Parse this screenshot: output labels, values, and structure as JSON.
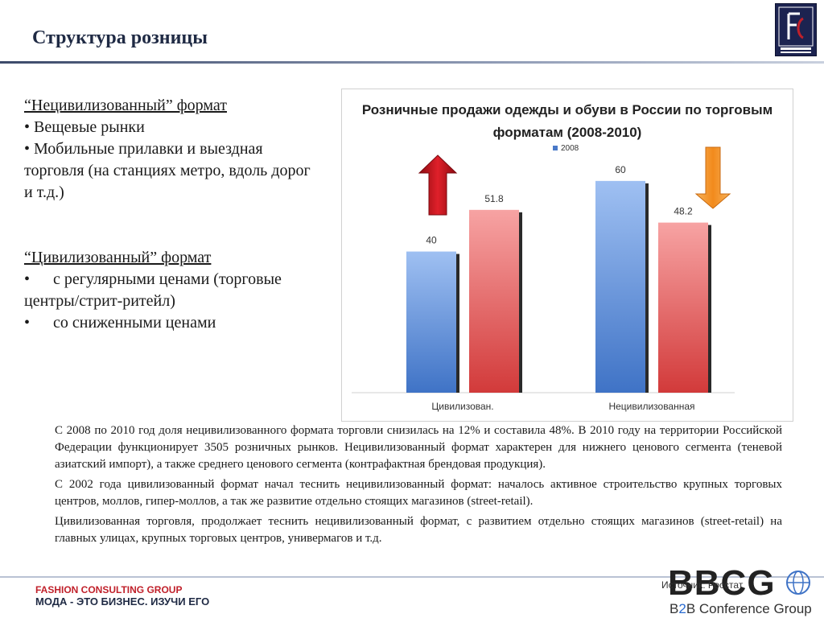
{
  "slide": {
    "title": "Структура розницы",
    "logo_icon": "fashion-consulting-logo-icon"
  },
  "left": {
    "uncivilized_heading": "“Нецивилизованный” формат",
    "uncivilized_items": [
      "Вещевые рынки",
      "Мобильные прилавки и выездная торговля (на станциях метро, вдоль дорог и т.д.)"
    ],
    "civilized_heading": "“Цивилизованный” формат",
    "civilized_items": [
      "с регулярными ценами (торговые центры/стрит-ритейл)",
      "со сниженными ценами"
    ],
    "bullet": "•"
  },
  "chart_data": {
    "type": "bar",
    "title": "Розничные продажи одежды и обуви в России по торговым форматам (2008-2010)",
    "categories": [
      "Цивилизован.",
      "Нецивилизованная"
    ],
    "series": [
      {
        "name": "2008",
        "values": [
          40,
          60
        ]
      },
      {
        "values": [
          51.8,
          48.2
        ]
      }
    ],
    "data_labels": [
      "40",
      "51.8",
      "60",
      "48.2"
    ],
    "ylim": [
      0,
      70
    ],
    "grid": false,
    "legend": "top",
    "colors": [
      "#4a79c8",
      "#d23a3a"
    ],
    "arrows": [
      {
        "direction": "up",
        "color": "#c0101a"
      },
      {
        "direction": "down",
        "color": "#f08a1c"
      }
    ]
  },
  "body": {
    "paragraphs": [
      "С 2008  по 2010 год доля нецивилизованного формата торговли снизилась на 12% и составила 48%. В 2010 году на территории Российской Федерации функционирует 3505 розничных  рынков. Нецивилизованный формат характерен для нижнего ценового сегмента  (теневой азиатский импорт), а также среднего ценового сегмента (контрафактная брендовая продукция).",
      "С 2002 года цивилизованный формат начал теснить нецивилизованный формат: началось активное строительство крупных торговых центров, моллов, гипер-моллов, а так же развитие отдельно стоящих магазинов (street-retail).",
      "Цивилизованная торговля, продолжает теснить нецивилизованный формат, с развитием отдельно стоящих магазинов (street-retail) на главных улицах, крупных торговых центров, универмагов и т.д."
    ]
  },
  "footer": {
    "source": "Источник: Росстат",
    "fcg_line1": "FASHION CONSULTING GROUP",
    "fcg_line2": "МОДА - ЭТО БИЗНЕС. ИЗУЧИ ЕГО",
    "bbcg": "BBCG",
    "b2b_prefix": "B",
    "b2b_two": "2",
    "b2b_suffix": "B Conference Group"
  }
}
